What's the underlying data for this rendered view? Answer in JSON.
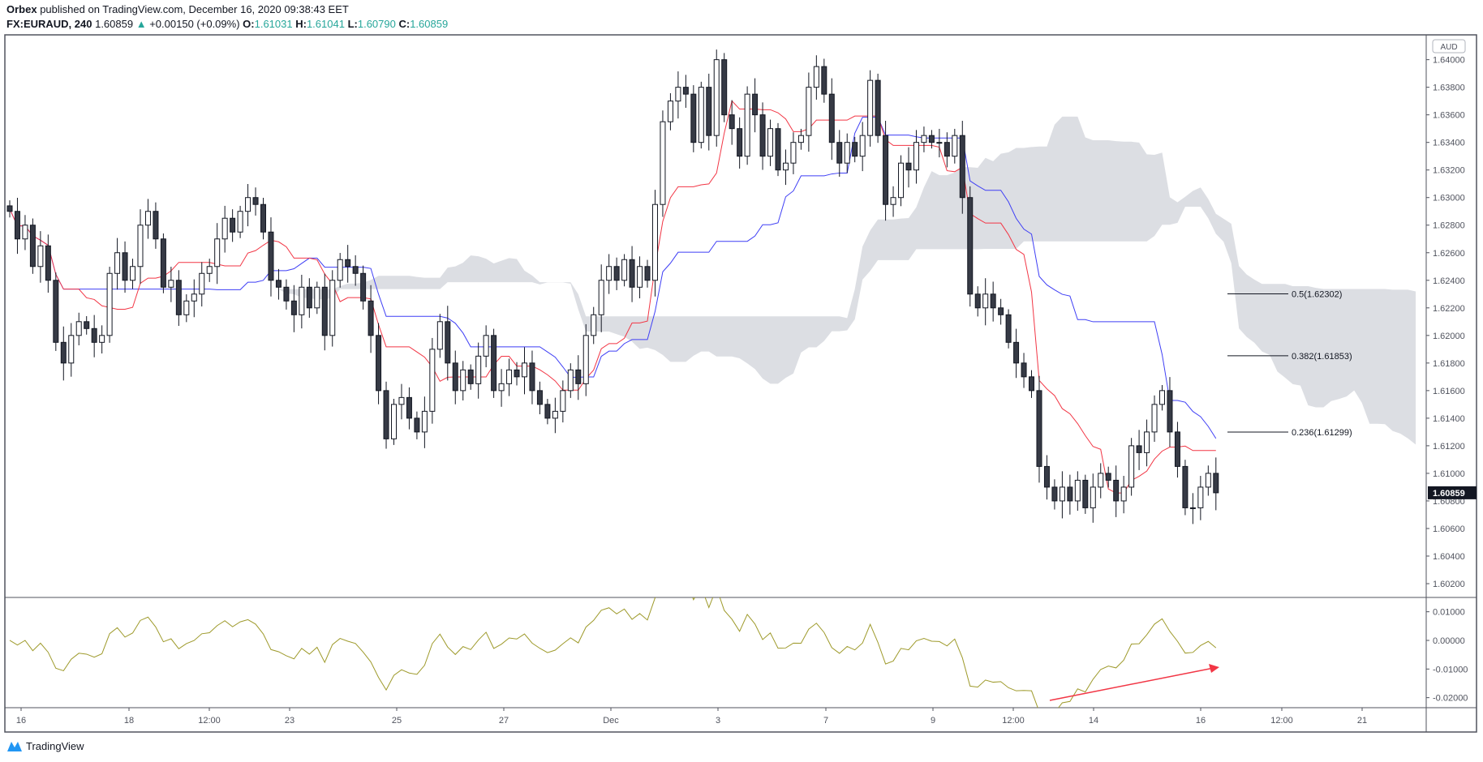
{
  "header": {
    "publisher": "Orbex",
    "published_text": "published on TradingView.com, December 16, 2020 09:38:43 EET",
    "symbol": "FX:EURAUD, 240",
    "last": "1.60859",
    "change": "+0.00150 (+0.09%)",
    "o_label": "O:",
    "o": "1.61031",
    "h_label": "H:",
    "h": "1.61041",
    "l_label": "L:",
    "l": "1.60790",
    "c_label": "C:",
    "c": "1.60859"
  },
  "currency_badge": "AUD",
  "footer_logo": "TradingView",
  "colors": {
    "up": "#ffffff",
    "down": "#363a45",
    "tenkan": "#f23645",
    "kijun": "#3f3ff5",
    "cloud": "#d6d8de",
    "oscillator": "#9e9a2b",
    "arrow": "#f23645",
    "accent": "#26a69a"
  },
  "chart_data": {
    "type": "candlestick",
    "timeframe": "240",
    "close": [
      1.629,
      1.627,
      1.628,
      1.625,
      1.6265,
      1.624,
      1.6195,
      1.618,
      1.62,
      1.621,
      1.6205,
      1.6195,
      1.62,
      1.6245,
      1.626,
      1.624,
      1.625,
      1.628,
      1.629,
      1.627,
      1.6235,
      1.624,
      1.6215,
      1.6225,
      1.623,
      1.6245,
      1.625,
      1.627,
      1.6285,
      1.6275,
      1.629,
      1.63,
      1.6295,
      1.6275,
      1.624,
      1.6235,
      1.6225,
      1.6215,
      1.6235,
      1.622,
      1.6235,
      1.62,
      1.624,
      1.6255,
      1.625,
      1.6245,
      1.6225,
      1.62,
      1.616,
      1.6125,
      1.615,
      1.6155,
      1.614,
      1.613,
      1.6145,
      1.619,
      1.621,
      1.618,
      1.616,
      1.6175,
      1.6165,
      1.6185,
      1.62,
      1.616,
      1.6165,
      1.6175,
      1.617,
      1.618,
      1.616,
      1.615,
      1.614,
      1.6145,
      1.616,
      1.6175,
      1.6165,
      1.62,
      1.6215,
      1.624,
      1.625,
      1.624,
      1.6255,
      1.6235,
      1.625,
      1.624,
      1.6295,
      1.6355,
      1.637,
      1.638,
      1.6375,
      1.634,
      1.638,
      1.6345,
      1.64,
      1.636,
      1.635,
      1.633,
      1.6375,
      1.636,
      1.633,
      1.635,
      1.632,
      1.6325,
      1.634,
      1.6345,
      1.638,
      1.6395,
      1.6375,
      1.634,
      1.6325,
      1.634,
      1.633,
      1.6345,
      1.6385,
      1.6345,
      1.6295,
      1.63,
      1.6325,
      1.632,
      1.634,
      1.6345,
      1.634,
      1.634,
      1.633,
      1.6345,
      1.63,
      1.623,
      1.622,
      1.623,
      1.622,
      1.6215,
      1.6195,
      1.618,
      1.617,
      1.616,
      1.6105,
      1.609,
      1.608,
      1.609,
      1.608,
      1.6095,
      1.6075,
      1.609,
      1.61,
      1.6095,
      1.608,
      1.609,
      1.612,
      1.6115,
      1.613,
      1.615,
      1.616,
      1.613,
      1.6105,
      1.6075,
      1.6075,
      1.609,
      1.61,
      1.60859
    ],
    "price_ticks": [
      "1.64000",
      "1.63800",
      "1.63600",
      "1.63400",
      "1.63200",
      "1.63000",
      "1.62800",
      "1.62600",
      "1.62400",
      "1.62200",
      "1.62000",
      "1.61800",
      "1.61600",
      "1.61400",
      "1.61200",
      "1.61000",
      "1.60800",
      "1.60600",
      "1.60400",
      "1.60200"
    ],
    "price_range": [
      1.601,
      1.6418
    ],
    "last_price_label": "1.60859",
    "osc_ticks": [
      "0.01000",
      "0.00000",
      "-0.01000",
      "-0.02000"
    ],
    "osc_range": [
      -0.0235,
      0.015
    ],
    "time_ticks": [
      "16",
      "18",
      "12:00",
      "23",
      "25",
      "27",
      "Dec",
      "3",
      "7",
      "9",
      "12:00",
      "14",
      "16",
      "12:00",
      "21"
    ],
    "indicators": [
      "Ichimoku Cloud",
      "Oscillator"
    ],
    "fib_levels": [
      {
        "ratio": "0.5",
        "price": 1.62302,
        "label": "0.5(1.62302)"
      },
      {
        "ratio": "0.382",
        "price": 1.61853,
        "label": "0.382(1.61853)"
      },
      {
        "ratio": "0.236",
        "price": 1.61299,
        "label": "0.236(1.61299)"
      }
    ],
    "annotation": "rising arrow on oscillator (bullish divergence)"
  }
}
